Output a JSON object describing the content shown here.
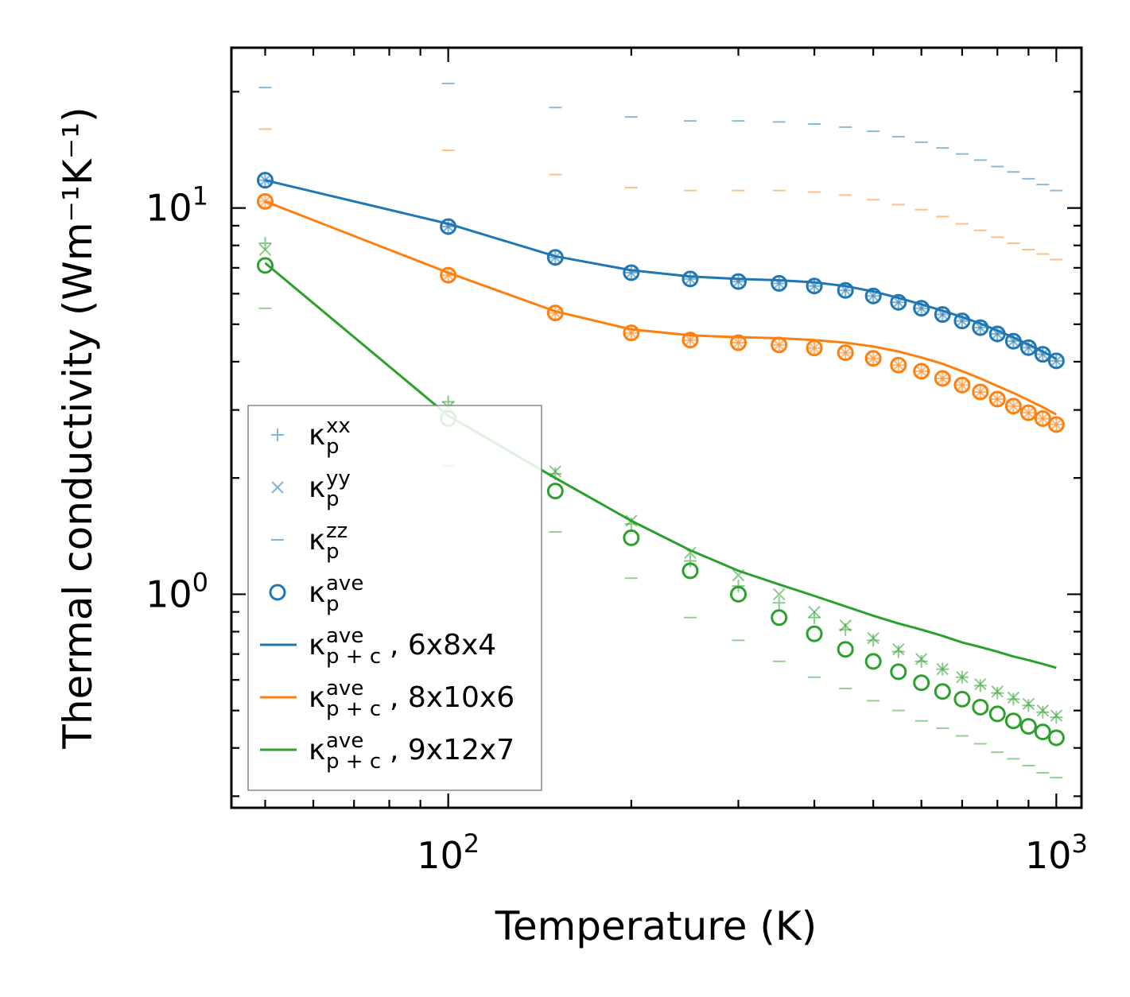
{
  "chart_data": {
    "type": "scatter",
    "xscale": "log",
    "yscale": "log",
    "xlabel": "Temperature (K)",
    "ylabel": "Thermal conductivity (Wm⁻¹K⁻¹)",
    "xlim": [
      44,
      1100
    ],
    "ylim": [
      0.28,
      26
    ],
    "xticks": [
      {
        "base": "10",
        "exp": "2",
        "value": 100
      },
      {
        "base": "10",
        "exp": "3",
        "value": 1000
      }
    ],
    "yticks": [
      {
        "base": "10",
        "exp": "0",
        "value": 1
      },
      {
        "base": "10",
        "exp": "1",
        "value": 10
      }
    ],
    "temperatures": [
      50,
      100,
      150,
      200,
      250,
      300,
      350,
      400,
      450,
      500,
      550,
      600,
      650,
      700,
      750,
      800,
      850,
      900,
      950,
      1000
    ],
    "series": [
      {
        "name": "6x8x4",
        "color": "#1f77b4",
        "kxx": [
          11.8,
          8.95,
          7.45,
          6.8,
          6.55,
          6.45,
          6.38,
          6.28,
          6.12,
          5.92,
          5.7,
          5.5,
          5.3,
          5.1,
          4.9,
          4.72,
          4.52,
          4.35,
          4.18,
          4.02
        ],
        "kyy": [
          11.8,
          8.95,
          7.45,
          6.8,
          6.55,
          6.45,
          6.38,
          6.28,
          6.12,
          5.92,
          5.7,
          5.5,
          5.3,
          5.1,
          4.9,
          4.72,
          4.52,
          4.35,
          4.18,
          4.02
        ],
        "kzz": [
          20.5,
          21.0,
          18.2,
          17.2,
          16.8,
          16.8,
          16.7,
          16.5,
          16.2,
          15.8,
          15.3,
          14.8,
          14.3,
          13.8,
          13.3,
          12.8,
          12.4,
          11.9,
          11.5,
          11.1
        ],
        "kave": [
          11.8,
          8.95,
          7.45,
          6.8,
          6.55,
          6.45,
          6.38,
          6.28,
          6.12,
          5.92,
          5.7,
          5.5,
          5.3,
          5.1,
          4.9,
          4.72,
          4.52,
          4.35,
          4.18,
          4.02
        ],
        "kpc": [
          11.8,
          9.1,
          7.5,
          6.9,
          6.65,
          6.55,
          6.5,
          6.42,
          6.28,
          6.08,
          5.85,
          5.63,
          5.42,
          5.22,
          5.02,
          4.82,
          4.62,
          4.43,
          4.25,
          4.07
        ]
      },
      {
        "name": "8x10x6",
        "color": "#ff7f0e",
        "kxx": [
          10.4,
          6.7,
          5.35,
          4.75,
          4.55,
          4.48,
          4.42,
          4.34,
          4.22,
          4.08,
          3.92,
          3.78,
          3.62,
          3.48,
          3.34,
          3.2,
          3.07,
          2.95,
          2.85,
          2.75
        ],
        "kyy": [
          10.4,
          6.7,
          5.35,
          4.75,
          4.55,
          4.48,
          4.42,
          4.34,
          4.22,
          4.08,
          3.92,
          3.78,
          3.62,
          3.48,
          3.34,
          3.2,
          3.07,
          2.95,
          2.85,
          2.75
        ],
        "kzz": [
          16.0,
          14.1,
          12.2,
          11.3,
          11.1,
          11.1,
          11.1,
          11.0,
          10.8,
          10.5,
          10.2,
          9.9,
          9.5,
          9.1,
          8.75,
          8.4,
          8.1,
          7.8,
          7.6,
          7.35
        ],
        "kave": [
          10.4,
          6.7,
          5.35,
          4.75,
          4.55,
          4.48,
          4.42,
          4.34,
          4.22,
          4.08,
          3.92,
          3.78,
          3.62,
          3.48,
          3.34,
          3.2,
          3.07,
          2.95,
          2.85,
          2.75
        ],
        "kpc": [
          10.4,
          6.8,
          5.4,
          4.85,
          4.68,
          4.63,
          4.6,
          4.55,
          4.48,
          4.38,
          4.25,
          4.1,
          3.95,
          3.78,
          3.62,
          3.46,
          3.32,
          3.18,
          3.05,
          2.92
        ]
      },
      {
        "name": "9x12x7",
        "color": "#2ca02c",
        "kxx": [
          8.1,
          3.15,
          2.05,
          1.52,
          1.22,
          1.05,
          0.95,
          0.87,
          0.81,
          0.76,
          0.71,
          0.67,
          0.64,
          0.61,
          0.58,
          0.555,
          0.535,
          0.515,
          0.495,
          0.48
        ],
        "kyy": [
          7.8,
          3.05,
          2.08,
          1.55,
          1.28,
          1.12,
          1.0,
          0.9,
          0.83,
          0.77,
          0.72,
          0.68,
          0.64,
          0.61,
          0.585,
          0.56,
          0.54,
          0.52,
          0.5,
          0.485
        ],
        "kzz": [
          5.5,
          2.15,
          1.45,
          1.1,
          0.87,
          0.76,
          0.67,
          0.61,
          0.57,
          0.53,
          0.5,
          0.47,
          0.45,
          0.43,
          0.41,
          0.39,
          0.375,
          0.36,
          0.345,
          0.335
        ],
        "kave": [
          7.1,
          2.85,
          1.85,
          1.4,
          1.15,
          1.0,
          0.87,
          0.79,
          0.72,
          0.67,
          0.63,
          0.59,
          0.56,
          0.535,
          0.51,
          0.49,
          0.47,
          0.455,
          0.44,
          0.425
        ],
        "kpc": [
          7.2,
          2.9,
          2.0,
          1.55,
          1.3,
          1.15,
          1.06,
          0.99,
          0.93,
          0.88,
          0.84,
          0.81,
          0.78,
          0.75,
          0.73,
          0.71,
          0.69,
          0.675,
          0.66,
          0.645
        ]
      }
    ],
    "legend": {
      "position": "lower-left",
      "entries": [
        {
          "kind": "plus",
          "color": "#1f77b4",
          "base": "κ",
          "sub": "p",
          "sup": "xx",
          "suffix": ""
        },
        {
          "kind": "cross",
          "color": "#1f77b4",
          "base": "κ",
          "sub": "p",
          "sup": "yy",
          "suffix": ""
        },
        {
          "kind": "dash",
          "color": "#1f77b4",
          "base": "κ",
          "sub": "p",
          "sup": "zz",
          "suffix": ""
        },
        {
          "kind": "circle",
          "color": "#1f77b4",
          "base": "κ",
          "sub": "p",
          "sup": "ave",
          "suffix": ""
        },
        {
          "kind": "line",
          "color": "#1f77b4",
          "base": "κ",
          "sub": "p + c",
          "sup": "ave",
          "suffix": ", 6x8x4"
        },
        {
          "kind": "line",
          "color": "#ff7f0e",
          "base": "κ",
          "sub": "p + c",
          "sup": "ave",
          "suffix": ", 8x10x6"
        },
        {
          "kind": "line",
          "color": "#2ca02c",
          "base": "κ",
          "sub": "p + c",
          "sup": "ave",
          "suffix": ", 9x12x7"
        }
      ]
    }
  }
}
